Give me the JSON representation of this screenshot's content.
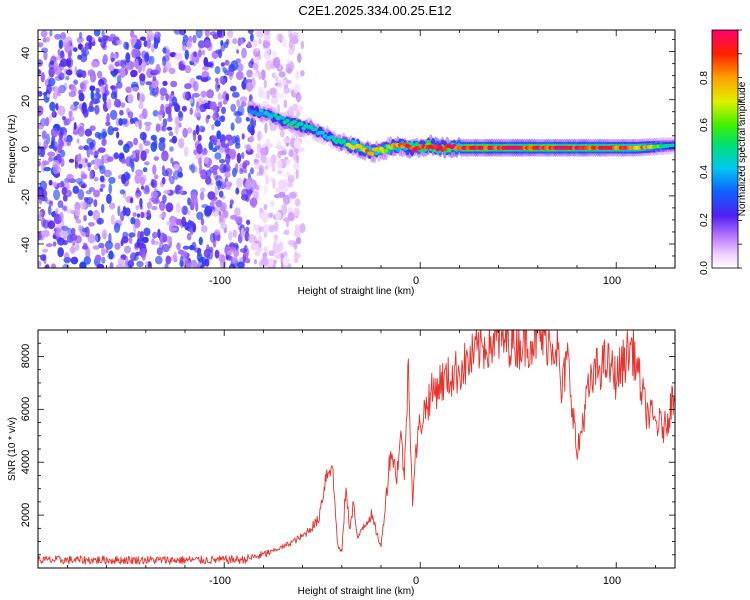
{
  "title": "C2E1.2025.334.00.25.E12",
  "colors": {
    "trace": "#e8322c",
    "axis": "#000000",
    "scatter": "#7b2cf0"
  },
  "chart_data": [
    {
      "type": "heatmap",
      "name": "spectrogram",
      "xlabel": "Height of straight line (km)",
      "ylabel": "Frequency (Hz)",
      "xlim": [
        -195,
        130
      ],
      "ylim": [
        -50,
        49
      ],
      "x_ticks": [
        -100,
        0,
        100
      ],
      "x_tick_labels": [
        "-100",
        "0",
        "100"
      ],
      "y_ticks": [
        40,
        20,
        0,
        -20,
        -40
      ],
      "y_tick_labels": [
        "40",
        "20",
        "0",
        "-20",
        "-40"
      ],
      "colorbar": {
        "label": "Normalized spectral amplitude",
        "range": [
          0,
          1
        ],
        "ticks": [
          0.0,
          0.2,
          0.4,
          0.6,
          0.8
        ],
        "tick_labels": [
          "0.0",
          "0.2",
          "0.4",
          "0.6",
          "0.8"
        ]
      },
      "ridge": {
        "height_km": [
          -87,
          -75,
          -65,
          -55,
          -48,
          -40,
          -35,
          -30,
          -25,
          -20,
          -15,
          -10,
          -5,
          0,
          5,
          10,
          15,
          30,
          60,
          90,
          110,
          130
        ],
        "frequency_hz": [
          16,
          13,
          10,
          8,
          5,
          2,
          1,
          0,
          -2,
          -1,
          0,
          1,
          0,
          0,
          1,
          0,
          0,
          0,
          0,
          0,
          0,
          1
        ],
        "amplitude": [
          0.35,
          0.45,
          0.5,
          0.45,
          0.4,
          0.5,
          0.7,
          0.8,
          0.75,
          0.7,
          0.75,
          0.8,
          0.85,
          0.9,
          0.95,
          0.9,
          0.95,
          0.95,
          0.95,
          0.95,
          0.85,
          0.4
        ]
      },
      "noise_region_km": [
        -195,
        -85
      ]
    },
    {
      "type": "line",
      "name": "snr",
      "xlabel": "Height of straight line (km)",
      "ylabel": "SNR (10 * v/v)",
      "xlim": [
        -195,
        130
      ],
      "ylim": [
        0,
        9000
      ],
      "x_ticks": [
        -100,
        0,
        100
      ],
      "x_tick_labels": [
        "-100",
        "0",
        "100"
      ],
      "y_ticks": [
        2000,
        4000,
        6000,
        8000
      ],
      "y_tick_labels": [
        "2000",
        "4000",
        "6000",
        "8000"
      ],
      "series": [
        {
          "name": "SNR",
          "x": [
            -195,
            -170,
            -140,
            -110,
            -90,
            -80,
            -70,
            -60,
            -52,
            -48,
            -45,
            -42,
            -40,
            -38,
            -36,
            -34,
            -32,
            -30,
            -25,
            -20,
            -17,
            -15,
            -12,
            -10,
            -8,
            -6,
            -4,
            -2,
            0,
            5,
            10,
            15,
            20,
            25,
            30,
            35,
            40,
            45,
            50,
            55,
            60,
            65,
            70,
            72,
            75,
            78,
            80,
            85,
            90,
            95,
            100,
            105,
            108,
            110,
            115,
            120,
            125,
            130
          ],
          "y": [
            300,
            300,
            300,
            300,
            320,
            500,
            800,
            1200,
            1800,
            3500,
            4000,
            800,
            600,
            3000,
            1500,
            2500,
            1000,
            1500,
            2000,
            800,
            3000,
            4500,
            3500,
            5000,
            3500,
            8000,
            2500,
            4500,
            5500,
            6500,
            7000,
            7200,
            7500,
            7800,
            8300,
            8500,
            8600,
            8650,
            8500,
            8600,
            8700,
            8650,
            8400,
            6500,
            8000,
            6000,
            4200,
            6500,
            7500,
            7800,
            7200,
            8000,
            8400,
            7800,
            6000,
            5500,
            5300,
            6800
          ]
        }
      ]
    }
  ]
}
